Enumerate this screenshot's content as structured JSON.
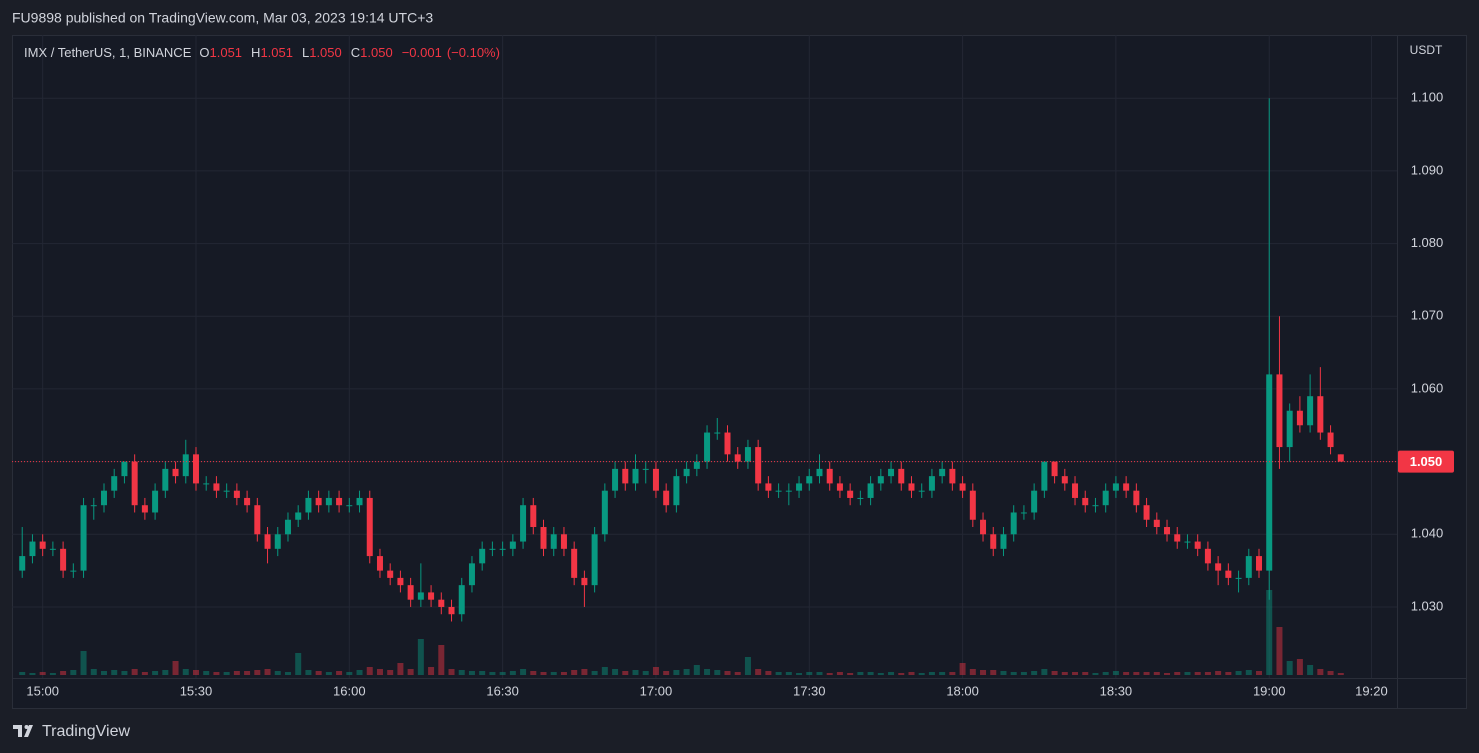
{
  "header": "FU9898 published on TradingView.com, Mar 03, 2023 19:14 UTC+3",
  "footer": "TradingView",
  "chart_data": {
    "type": "candlestick",
    "title": "IMX / TetherUS, 1, BINANCE",
    "ohlc_legend": [
      {
        "name": "O",
        "value": 1.051
      },
      {
        "name": "H",
        "value": 1.051
      },
      {
        "name": "L",
        "value": 1.05,
        "value_label": "1.050"
      },
      {
        "name": "C",
        "value": 1.05,
        "value_label": "1.050"
      }
    ],
    "change": {
      "value": -0.001,
      "label": "−0.001"
    },
    "change_pct": {
      "value": -0.1,
      "label": "(−0.10%)"
    },
    "y_axis_label": "USDT",
    "last_price": {
      "value": 1.05,
      "label": "1.050"
    },
    "up_color": "#089981",
    "down_color": "#f23645",
    "grid": true,
    "xlim": [
      "14:54",
      "19:25"
    ],
    "xticks": [
      "15:00",
      "15:30",
      "16:00",
      "16:30",
      "17:00",
      "17:30",
      "18:00",
      "18:30",
      "19:00",
      "19:20"
    ],
    "ylim": [
      1.0205,
      1.1087
    ],
    "yticks": [
      {
        "value": 1.03,
        "label": "1.030"
      },
      {
        "value": 1.04,
        "label": "1.040"
      },
      {
        "value": 1.05,
        "label": "1.050"
      },
      {
        "value": 1.06,
        "label": "1.060"
      },
      {
        "value": 1.07,
        "label": "1.070"
      },
      {
        "value": 1.08,
        "label": "1.080"
      },
      {
        "value": 1.09,
        "label": "1.090"
      },
      {
        "value": 1.1,
        "label": "1.100"
      }
    ],
    "volume_lim": [
      0,
      100
    ],
    "x": [
      "14:56",
      "14:58",
      "15:00",
      "15:02",
      "15:04",
      "15:06",
      "15:08",
      "15:10",
      "15:12",
      "15:14",
      "15:16",
      "15:18",
      "15:20",
      "15:22",
      "15:24",
      "15:26",
      "15:28",
      "15:30",
      "15:32",
      "15:34",
      "15:36",
      "15:38",
      "15:40",
      "15:42",
      "15:44",
      "15:46",
      "15:48",
      "15:50",
      "15:52",
      "15:54",
      "15:56",
      "15:58",
      "16:00",
      "16:02",
      "16:04",
      "16:06",
      "16:08",
      "16:10",
      "16:12",
      "16:14",
      "16:16",
      "16:18",
      "16:20",
      "16:22",
      "16:24",
      "16:26",
      "16:28",
      "16:30",
      "16:32",
      "16:34",
      "16:36",
      "16:38",
      "16:40",
      "16:42",
      "16:44",
      "16:46",
      "16:48",
      "16:50",
      "16:52",
      "16:54",
      "16:56",
      "16:58",
      "17:00",
      "17:02",
      "17:04",
      "17:06",
      "17:08",
      "17:10",
      "17:12",
      "17:14",
      "17:16",
      "17:18",
      "17:20",
      "17:22",
      "17:24",
      "17:26",
      "17:28",
      "17:30",
      "17:32",
      "17:34",
      "17:36",
      "17:38",
      "17:40",
      "17:42",
      "17:44",
      "17:46",
      "17:48",
      "17:50",
      "17:52",
      "17:54",
      "17:56",
      "17:58",
      "18:00",
      "18:02",
      "18:04",
      "18:06",
      "18:08",
      "18:10",
      "18:12",
      "18:14",
      "18:16",
      "18:18",
      "18:20",
      "18:22",
      "18:24",
      "18:26",
      "18:28",
      "18:30",
      "18:32",
      "18:34",
      "18:36",
      "18:38",
      "18:40",
      "18:42",
      "18:44",
      "18:46",
      "18:48",
      "18:50",
      "18:52",
      "18:54",
      "18:56",
      "18:58",
      "19:00",
      "19:02",
      "19:04",
      "19:06",
      "19:08",
      "19:10",
      "19:12",
      "19:14"
    ],
    "open": [
      1.035,
      1.037,
      1.039,
      1.038,
      1.038,
      1.035,
      1.035,
      1.044,
      1.044,
      1.046,
      1.048,
      1.05,
      1.044,
      1.043,
      1.046,
      1.049,
      1.048,
      1.051,
      1.047,
      1.047,
      1.046,
      1.046,
      1.045,
      1.044,
      1.04,
      1.038,
      1.04,
      1.042,
      1.043,
      1.045,
      1.044,
      1.045,
      1.044,
      1.044,
      1.045,
      1.037,
      1.035,
      1.034,
      1.033,
      1.031,
      1.032,
      1.031,
      1.03,
      1.029,
      1.033,
      1.036,
      1.038,
      1.038,
      1.038,
      1.039,
      1.044,
      1.041,
      1.038,
      1.04,
      1.038,
      1.034,
      1.033,
      1.04,
      1.046,
      1.049,
      1.047,
      1.049,
      1.049,
      1.046,
      1.044,
      1.048,
      1.049,
      1.05,
      1.054,
      1.054,
      1.051,
      1.05,
      1.052,
      1.047,
      1.046,
      1.046,
      1.046,
      1.047,
      1.048,
      1.049,
      1.047,
      1.046,
      1.045,
      1.045,
      1.047,
      1.048,
      1.049,
      1.047,
      1.046,
      1.046,
      1.048,
      1.049,
      1.047,
      1.046,
      1.042,
      1.04,
      1.038,
      1.04,
      1.043,
      1.043,
      1.046,
      1.05,
      1.048,
      1.047,
      1.045,
      1.044,
      1.044,
      1.046,
      1.047,
      1.046,
      1.044,
      1.042,
      1.041,
      1.04,
      1.039,
      1.039,
      1.038,
      1.036,
      1.035,
      1.034,
      1.034,
      1.037,
      1.035,
      1.062,
      1.052,
      1.057,
      1.055,
      1.059,
      1.054,
      1.051
    ],
    "high": [
      1.041,
      1.04,
      1.04,
      1.039,
      1.039,
      1.036,
      1.045,
      1.045,
      1.047,
      1.049,
      1.05,
      1.051,
      1.045,
      1.047,
      1.05,
      1.05,
      1.053,
      1.052,
      1.048,
      1.048,
      1.047,
      1.047,
      1.046,
      1.045,
      1.041,
      1.041,
      1.043,
      1.044,
      1.046,
      1.046,
      1.046,
      1.046,
      1.045,
      1.046,
      1.046,
      1.038,
      1.036,
      1.035,
      1.034,
      1.036,
      1.033,
      1.032,
      1.031,
      1.034,
      1.037,
      1.039,
      1.039,
      1.039,
      1.04,
      1.045,
      1.045,
      1.042,
      1.041,
      1.041,
      1.039,
      1.035,
      1.041,
      1.047,
      1.05,
      1.05,
      1.051,
      1.05,
      1.05,
      1.047,
      1.049,
      1.05,
      1.051,
      1.055,
      1.056,
      1.055,
      1.052,
      1.053,
      1.053,
      1.048,
      1.047,
      1.047,
      1.048,
      1.049,
      1.051,
      1.05,
      1.048,
      1.047,
      1.046,
      1.048,
      1.049,
      1.05,
      1.05,
      1.048,
      1.047,
      1.049,
      1.05,
      1.05,
      1.048,
      1.047,
      1.043,
      1.041,
      1.041,
      1.044,
      1.044,
      1.047,
      1.05,
      1.05,
      1.049,
      1.048,
      1.046,
      1.045,
      1.047,
      1.048,
      1.048,
      1.047,
      1.045,
      1.043,
      1.042,
      1.041,
      1.04,
      1.04,
      1.039,
      1.037,
      1.036,
      1.035,
      1.038,
      1.038,
      1.1,
      1.07,
      1.058,
      1.059,
      1.062,
      1.063,
      1.055,
      1.051
    ],
    "low": [
      1.034,
      1.036,
      1.037,
      1.037,
      1.034,
      1.034,
      1.034,
      1.042,
      1.043,
      1.045,
      1.047,
      1.043,
      1.042,
      1.042,
      1.045,
      1.047,
      1.047,
      1.046,
      1.046,
      1.045,
      1.045,
      1.044,
      1.043,
      1.039,
      1.036,
      1.037,
      1.039,
      1.041,
      1.042,
      1.043,
      1.043,
      1.043,
      1.043,
      1.043,
      1.036,
      1.034,
      1.033,
      1.032,
      1.03,
      1.03,
      1.03,
      1.029,
      1.028,
      1.028,
      1.032,
      1.035,
      1.037,
      1.037,
      1.037,
      1.038,
      1.04,
      1.037,
      1.037,
      1.037,
      1.033,
      1.03,
      1.032,
      1.039,
      1.045,
      1.046,
      1.046,
      1.047,
      1.045,
      1.043,
      1.043,
      1.047,
      1.048,
      1.049,
      1.053,
      1.05,
      1.049,
      1.049,
      1.046,
      1.045,
      1.045,
      1.044,
      1.045,
      1.046,
      1.047,
      1.046,
      1.045,
      1.044,
      1.044,
      1.044,
      1.046,
      1.047,
      1.046,
      1.045,
      1.045,
      1.045,
      1.047,
      1.046,
      1.045,
      1.041,
      1.039,
      1.037,
      1.037,
      1.039,
      1.042,
      1.042,
      1.045,
      1.047,
      1.046,
      1.044,
      1.043,
      1.043,
      1.043,
      1.045,
      1.045,
      1.043,
      1.041,
      1.04,
      1.039,
      1.038,
      1.038,
      1.037,
      1.035,
      1.033,
      1.033,
      1.032,
      1.033,
      1.034,
      1.031,
      1.049,
      1.05,
      1.054,
      1.054,
      1.053,
      1.051,
      1.05
    ],
    "close": [
      1.037,
      1.039,
      1.038,
      1.038,
      1.035,
      1.035,
      1.044,
      1.044,
      1.046,
      1.048,
      1.05,
      1.044,
      1.043,
      1.046,
      1.049,
      1.048,
      1.051,
      1.047,
      1.047,
      1.046,
      1.046,
      1.045,
      1.044,
      1.04,
      1.038,
      1.04,
      1.042,
      1.043,
      1.045,
      1.044,
      1.045,
      1.044,
      1.044,
      1.045,
      1.037,
      1.035,
      1.034,
      1.033,
      1.031,
      1.032,
      1.031,
      1.03,
      1.029,
      1.033,
      1.036,
      1.038,
      1.038,
      1.038,
      1.039,
      1.044,
      1.041,
      1.038,
      1.04,
      1.038,
      1.034,
      1.033,
      1.04,
      1.046,
      1.049,
      1.047,
      1.049,
      1.049,
      1.046,
      1.044,
      1.048,
      1.049,
      1.05,
      1.054,
      1.054,
      1.051,
      1.05,
      1.052,
      1.047,
      1.046,
      1.046,
      1.046,
      1.047,
      1.048,
      1.049,
      1.047,
      1.046,
      1.045,
      1.045,
      1.047,
      1.048,
      1.049,
      1.047,
      1.046,
      1.046,
      1.048,
      1.049,
      1.047,
      1.046,
      1.042,
      1.04,
      1.038,
      1.04,
      1.043,
      1.043,
      1.046,
      1.05,
      1.048,
      1.047,
      1.045,
      1.044,
      1.044,
      1.046,
      1.047,
      1.046,
      1.044,
      1.042,
      1.041,
      1.04,
      1.039,
      1.039,
      1.038,
      1.036,
      1.035,
      1.034,
      1.034,
      1.037,
      1.035,
      1.062,
      1.052,
      1.057,
      1.055,
      1.059,
      1.054,
      1.052,
      1.05
    ],
    "volume": [
      3,
      2,
      3,
      2,
      4,
      5,
      24,
      6,
      4,
      5,
      4,
      6,
      3,
      4,
      5,
      14,
      6,
      5,
      4,
      3,
      3,
      4,
      4,
      5,
      6,
      4,
      3,
      22,
      5,
      4,
      3,
      4,
      3,
      5,
      8,
      6,
      5,
      12,
      6,
      36,
      8,
      30,
      6,
      5,
      4,
      4,
      3,
      3,
      4,
      6,
      4,
      3,
      3,
      3,
      5,
      6,
      4,
      8,
      6,
      4,
      5,
      4,
      8,
      4,
      5,
      6,
      10,
      6,
      5,
      4,
      3,
      18,
      6,
      4,
      3,
      3,
      2,
      3,
      3,
      2,
      3,
      2,
      3,
      3,
      2,
      3,
      2,
      3,
      2,
      3,
      3,
      3,
      12,
      6,
      5,
      5,
      4,
      3,
      3,
      4,
      6,
      4,
      3,
      3,
      3,
      2,
      3,
      4,
      3,
      3,
      3,
      3,
      2,
      3,
      3,
      3,
      3,
      4,
      3,
      4,
      5,
      4,
      85,
      48,
      14,
      16,
      10,
      6,
      4,
      2
    ]
  }
}
